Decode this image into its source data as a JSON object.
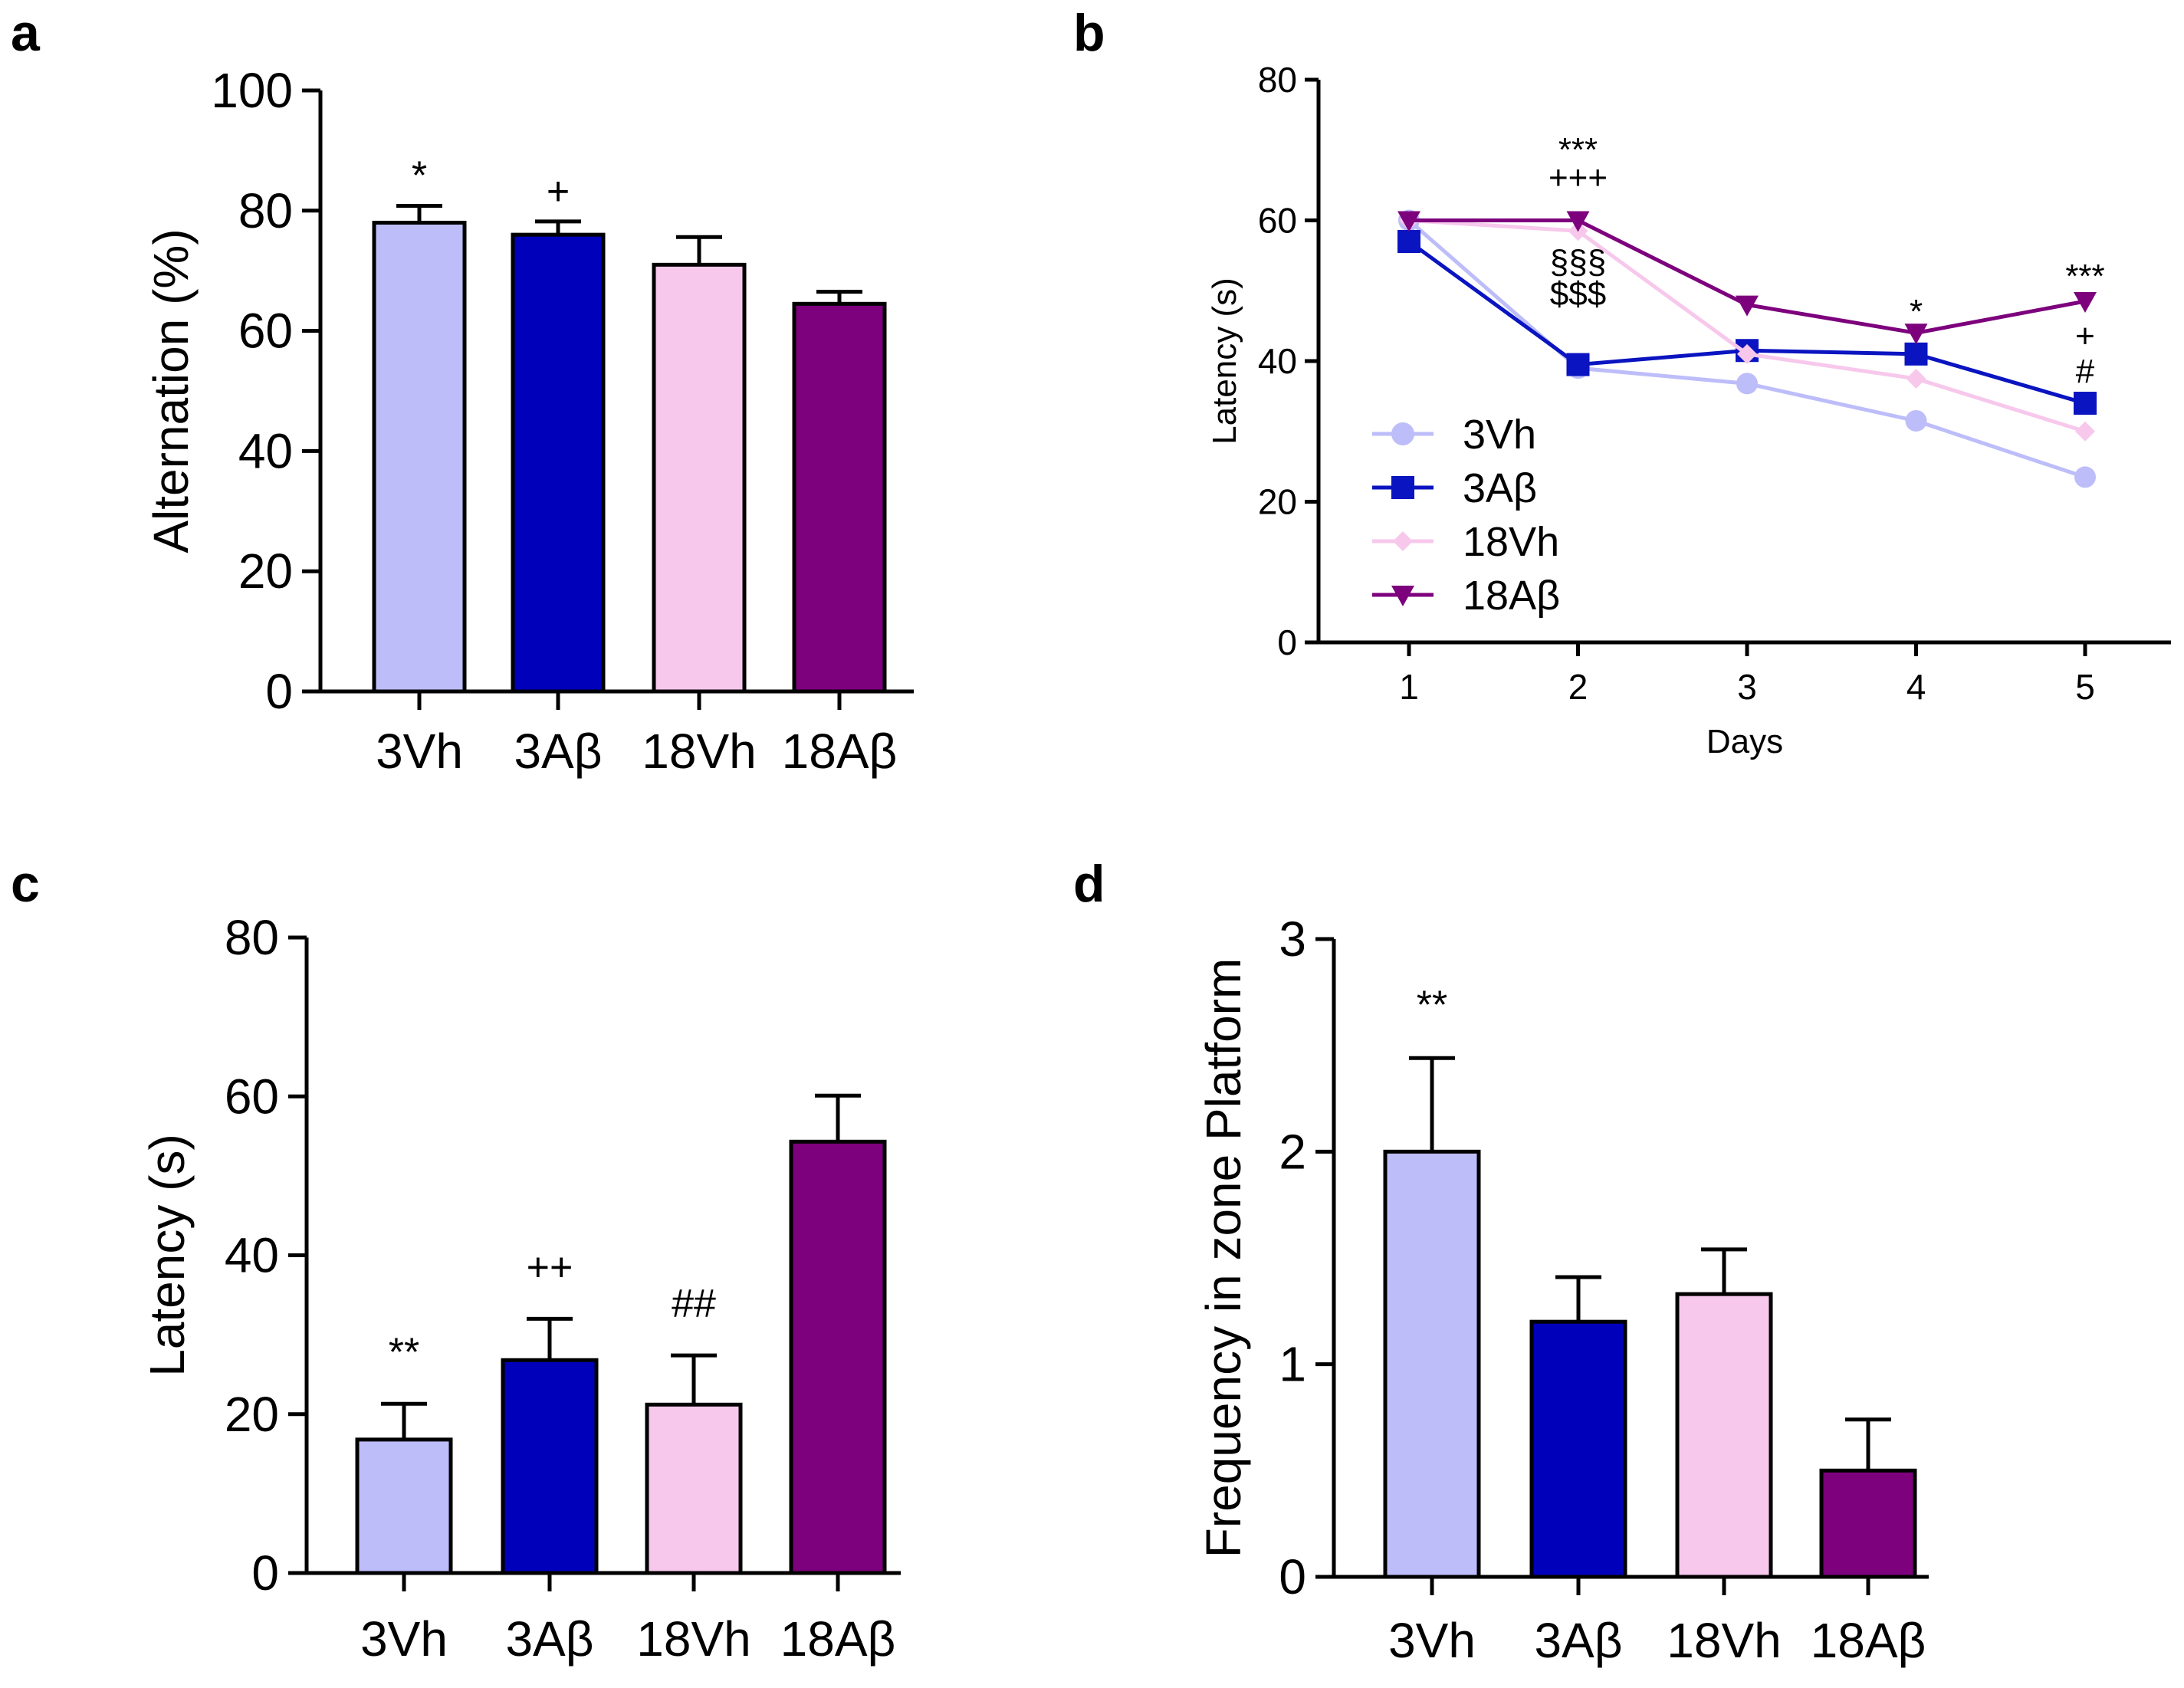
{
  "chart_data": [
    {
      "panel": "a",
      "type": "bar",
      "title": "",
      "xlabel": "",
      "ylabel": "Alternation (%)",
      "ylim": [
        0,
        100
      ],
      "yticks": [
        "0",
        "20",
        "40",
        "60",
        "80",
        "100"
      ],
      "categories": [
        "3Vh",
        "3Aβ",
        "18Vh",
        "18Aβ"
      ],
      "values": [
        78,
        76,
        71,
        64.5
      ],
      "errors": [
        2.8,
        2.2,
        4.6,
        2.0
      ],
      "colors": [
        "#bdbdfa",
        "#0000bb",
        "#f7c8ec",
        "#7d007d"
      ],
      "annotations": [
        "*",
        "+",
        "",
        ""
      ]
    },
    {
      "panel": "b",
      "type": "line",
      "title": "",
      "xlabel": "Days",
      "ylabel": "Latency (s)",
      "ylim": [
        0,
        80
      ],
      "yticks": [
        "0",
        "20",
        "40",
        "60",
        "80"
      ],
      "xticks": [
        "1",
        "2",
        "3",
        "4",
        "5"
      ],
      "x": [
        1,
        2,
        3,
        4,
        5
      ],
      "series": [
        {
          "name": "3Vh",
          "values": [
            60,
            39,
            36.8,
            31.5,
            23.5
          ],
          "color": "#bdbdfa",
          "marker": "circle"
        },
        {
          "name": "3Aβ",
          "values": [
            57,
            39.5,
            41.5,
            41,
            34
          ],
          "color": "#0a14c0",
          "marker": "square"
        },
        {
          "name": "18Vh",
          "values": [
            60,
            58.5,
            41,
            37.5,
            30
          ],
          "color": "#f7c8ec",
          "marker": "diamond"
        },
        {
          "name": "18Aβ",
          "values": [
            60,
            60,
            48,
            44,
            48.5
          ],
          "color": "#7d007d",
          "marker": "triangle-down"
        }
      ],
      "annotations": [
        {
          "x": 2,
          "y": 70,
          "text": "***"
        },
        {
          "x": 2,
          "y": 66,
          "text": "+++"
        },
        {
          "x": 2,
          "y": 54,
          "text": "§§§"
        },
        {
          "x": 2,
          "y": 49.5,
          "text": "$$$"
        },
        {
          "x": 4,
          "y": 47,
          "text": "*"
        },
        {
          "x": 5,
          "y": 52,
          "text": "***"
        },
        {
          "x": 5,
          "y": 43.5,
          "text": "+"
        },
        {
          "x": 5,
          "y": 38.5,
          "text": "#"
        }
      ],
      "legend": "bottom-left"
    },
    {
      "panel": "c",
      "type": "bar",
      "title": "",
      "xlabel": "",
      "ylabel": "Latency (s)",
      "ylim": [
        0,
        80
      ],
      "yticks": [
        "0",
        "20",
        "40",
        "60",
        "80"
      ],
      "categories": [
        "3Vh",
        "3Aβ",
        "18Vh",
        "18Aβ"
      ],
      "values": [
        16.8,
        26.8,
        21.2,
        54.3
      ],
      "errors": [
        4.5,
        5.2,
        6.2,
        5.8
      ],
      "colors": [
        "#bdbdfa",
        "#0000bb",
        "#f7c8ec",
        "#7d007d"
      ],
      "annotations": [
        "**",
        "++",
        "##",
        ""
      ]
    },
    {
      "panel": "d",
      "type": "bar",
      "title": "",
      "xlabel": "",
      "ylabel": "Frequency in zone Platform",
      "ylim": [
        0,
        3
      ],
      "yticks": [
        "0",
        "1",
        "2",
        "3"
      ],
      "categories": [
        "3Vh",
        "3Aβ",
        "18Vh",
        "18Aβ"
      ],
      "values": [
        2.0,
        1.2,
        1.33,
        0.5
      ],
      "errors": [
        0.44,
        0.21,
        0.21,
        0.24
      ],
      "colors": [
        "#bdbdfa",
        "#0000bb",
        "#f7c8ec",
        "#7d007d"
      ],
      "annotations": [
        "**",
        "",
        "",
        ""
      ]
    }
  ]
}
